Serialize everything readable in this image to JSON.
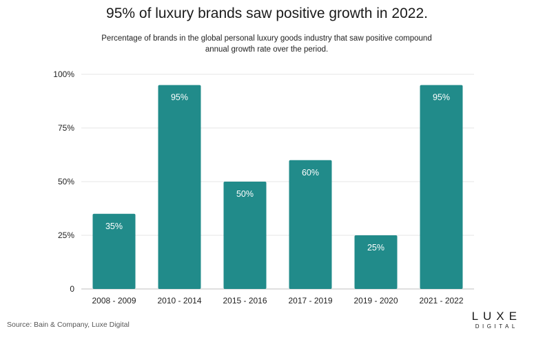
{
  "chart_data": {
    "type": "bar",
    "title": "95% of luxury brands saw positive growth in 2022.",
    "subtitle": "Percentage of brands in the global personal luxury goods industry that saw positive compound annual growth rate over the period.",
    "categories": [
      "2008 - 2009",
      "2010 - 2014",
      "2015 - 2016",
      "2017 - 2019",
      "2019 - 2020",
      "2021 - 2022"
    ],
    "values": [
      35,
      95,
      50,
      60,
      25,
      95
    ],
    "value_labels": [
      "35%",
      "95%",
      "50%",
      "60%",
      "25%",
      "95%"
    ],
    "yticks": [
      0,
      25,
      50,
      75,
      100
    ],
    "ytick_labels": [
      "0",
      "25%",
      "50%",
      "75%",
      "100%"
    ],
    "ylim": [
      0,
      100
    ],
    "xlabel": "",
    "ylabel": "",
    "grid": true,
    "bar_color": "#218b8a",
    "label_color": "#ffffff"
  },
  "footer": {
    "source": "Source: Bain & Company, Luxe Digital"
  },
  "logo": {
    "main": "LUXE",
    "sub": "DIGITAL"
  }
}
